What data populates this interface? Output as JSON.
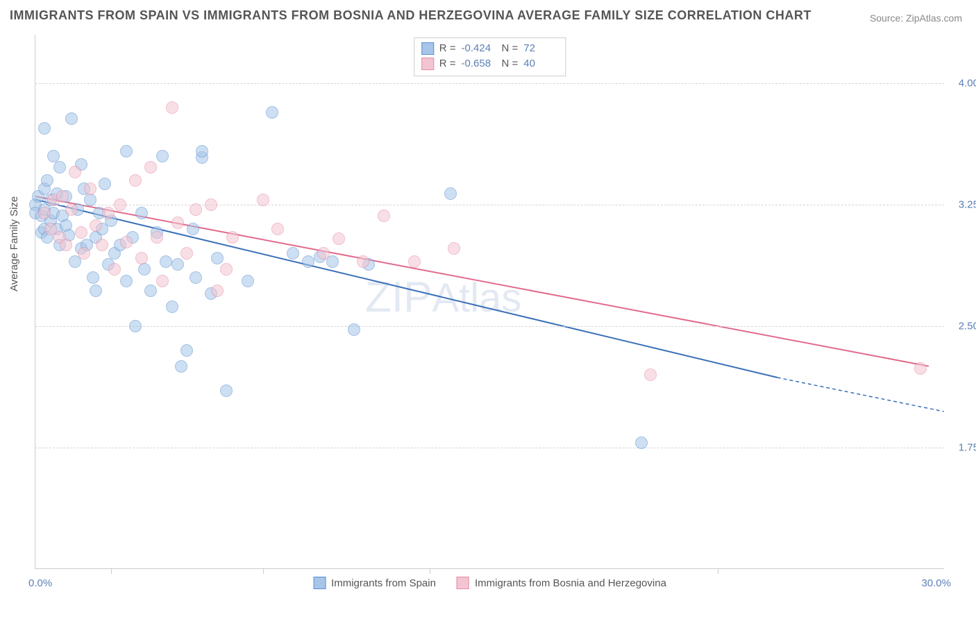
{
  "title": "IMMIGRANTS FROM SPAIN VS IMMIGRANTS FROM BOSNIA AND HERZEGOVINA AVERAGE FAMILY SIZE CORRELATION CHART",
  "source_label": "Source: ZipAtlas.com",
  "y_axis_label": "Average Family Size",
  "x_start_label": "0.0%",
  "x_end_label": "30.0%",
  "xlim": [
    0,
    30
  ],
  "ylim": [
    1.0,
    4.3
  ],
  "y_ticks": [
    1.75,
    2.5,
    3.25,
    4.0
  ],
  "y_tick_labels": [
    "1.75",
    "2.50",
    "3.25",
    "4.00"
  ],
  "x_ticks_pct": [
    2.5,
    7.5,
    13.0,
    22.5
  ],
  "grid_color": "#d5d5d5",
  "axis_color": "#cccccc",
  "tick_label_color": "#5b7fb5",
  "watermark_text": "ZIPAtlas",
  "watermark_color": "#6a8cc0",
  "series": [
    {
      "name": "Immigrants from Spain",
      "fill": "#a6c5e8",
      "stroke": "#5b8fd0",
      "fill_opacity": 0.55,
      "line_color": "#3a6fb8",
      "R_label": "R =",
      "R": "-0.424",
      "N_label": "N =",
      "N": "72",
      "trend": {
        "x1": 0.0,
        "y1": 3.28,
        "x2": 24.5,
        "y2": 2.18,
        "dash_to_x": 30.0,
        "dash_to_y": 1.97
      },
      "marker_radius": 9,
      "points": [
        [
          0.0,
          3.25
        ],
        [
          0.0,
          3.2
        ],
        [
          0.1,
          3.3
        ],
        [
          0.2,
          3.18
        ],
        [
          0.2,
          3.08
        ],
        [
          0.3,
          3.35
        ],
        [
          0.3,
          3.22
        ],
        [
          0.3,
          3.1
        ],
        [
          0.4,
          3.4
        ],
        [
          0.4,
          3.05
        ],
        [
          0.5,
          3.28
        ],
        [
          0.5,
          3.15
        ],
        [
          0.6,
          3.2
        ],
        [
          0.6,
          3.55
        ],
        [
          0.7,
          3.1
        ],
        [
          0.7,
          3.32
        ],
        [
          0.8,
          3.0
        ],
        [
          0.8,
          3.48
        ],
        [
          0.9,
          3.18
        ],
        [
          1.0,
          3.12
        ],
        [
          1.0,
          3.3
        ],
        [
          1.2,
          3.78
        ],
        [
          1.3,
          2.9
        ],
        [
          1.4,
          3.22
        ],
        [
          1.5,
          3.5
        ],
        [
          1.5,
          2.98
        ],
        [
          1.6,
          3.35
        ],
        [
          1.7,
          3.0
        ],
        [
          1.8,
          3.28
        ],
        [
          1.9,
          2.8
        ],
        [
          2.0,
          3.05
        ],
        [
          2.0,
          2.72
        ],
        [
          2.2,
          3.1
        ],
        [
          2.3,
          3.38
        ],
        [
          2.4,
          2.88
        ],
        [
          2.5,
          3.15
        ],
        [
          2.6,
          2.95
        ],
        [
          2.8,
          3.0
        ],
        [
          3.0,
          2.78
        ],
        [
          3.0,
          3.58
        ],
        [
          3.2,
          3.05
        ],
        [
          3.3,
          2.5
        ],
        [
          3.5,
          3.2
        ],
        [
          3.6,
          2.85
        ],
        [
          3.8,
          2.72
        ],
        [
          4.0,
          3.08
        ],
        [
          4.2,
          3.55
        ],
        [
          4.3,
          2.9
        ],
        [
          4.5,
          2.62
        ],
        [
          4.7,
          2.88
        ],
        [
          4.8,
          2.25
        ],
        [
          5.0,
          2.35
        ],
        [
          5.2,
          3.1
        ],
        [
          5.3,
          2.8
        ],
        [
          5.5,
          3.54
        ],
        [
          5.5,
          3.58
        ],
        [
          5.8,
          2.7
        ],
        [
          6.0,
          2.92
        ],
        [
          6.3,
          2.1
        ],
        [
          7.0,
          2.78
        ],
        [
          7.8,
          3.82
        ],
        [
          8.5,
          2.95
        ],
        [
          9.0,
          2.9
        ],
        [
          9.4,
          2.93
        ],
        [
          9.8,
          2.9
        ],
        [
          10.5,
          2.48
        ],
        [
          11.0,
          2.88
        ],
        [
          13.7,
          3.32
        ],
        [
          20.0,
          1.78
        ],
        [
          0.3,
          3.72
        ],
        [
          1.1,
          3.06
        ],
        [
          2.1,
          3.2
        ]
      ]
    },
    {
      "name": "Immigrants from Bosnia and Herzegovina",
      "fill": "#f3c5d2",
      "stroke": "#e48aa5",
      "fill_opacity": 0.55,
      "line_color": "#e26a8c",
      "R_label": "R =",
      "R": "-0.658",
      "N_label": "N =",
      "N": "40",
      "trend": {
        "x1": 0.0,
        "y1": 3.3,
        "x2": 29.5,
        "y2": 2.25,
        "dash_to_x": null,
        "dash_to_y": null
      },
      "marker_radius": 9,
      "points": [
        [
          0.3,
          3.2
        ],
        [
          0.5,
          3.1
        ],
        [
          0.6,
          3.28
        ],
        [
          0.8,
          3.05
        ],
        [
          0.9,
          3.3
        ],
        [
          1.0,
          3.0
        ],
        [
          1.2,
          3.22
        ],
        [
          1.3,
          3.45
        ],
        [
          1.5,
          3.08
        ],
        [
          1.6,
          2.95
        ],
        [
          1.8,
          3.35
        ],
        [
          2.0,
          3.12
        ],
        [
          2.2,
          3.0
        ],
        [
          2.4,
          3.2
        ],
        [
          2.6,
          2.85
        ],
        [
          2.8,
          3.25
        ],
        [
          3.0,
          3.02
        ],
        [
          3.3,
          3.4
        ],
        [
          3.5,
          2.92
        ],
        [
          3.8,
          3.48
        ],
        [
          4.0,
          3.05
        ],
        [
          4.2,
          2.78
        ],
        [
          4.5,
          3.85
        ],
        [
          4.7,
          3.14
        ],
        [
          5.0,
          2.95
        ],
        [
          5.3,
          3.22
        ],
        [
          5.8,
          3.25
        ],
        [
          6.0,
          2.72
        ],
        [
          6.3,
          2.85
        ],
        [
          6.5,
          3.05
        ],
        [
          7.5,
          3.28
        ],
        [
          8.0,
          3.1
        ],
        [
          9.5,
          2.95
        ],
        [
          10.0,
          3.04
        ],
        [
          10.8,
          2.9
        ],
        [
          11.5,
          3.18
        ],
        [
          12.5,
          2.9
        ],
        [
          13.8,
          2.98
        ],
        [
          20.3,
          2.2
        ],
        [
          29.2,
          2.24
        ]
      ]
    }
  ],
  "bottom_legend": [
    {
      "label": "Immigrants from Spain",
      "fill": "#a6c5e8",
      "stroke": "#5b8fd0"
    },
    {
      "label": "Immigrants from Bosnia and Herzegovina",
      "fill": "#f3c5d2",
      "stroke": "#e48aa5"
    }
  ]
}
